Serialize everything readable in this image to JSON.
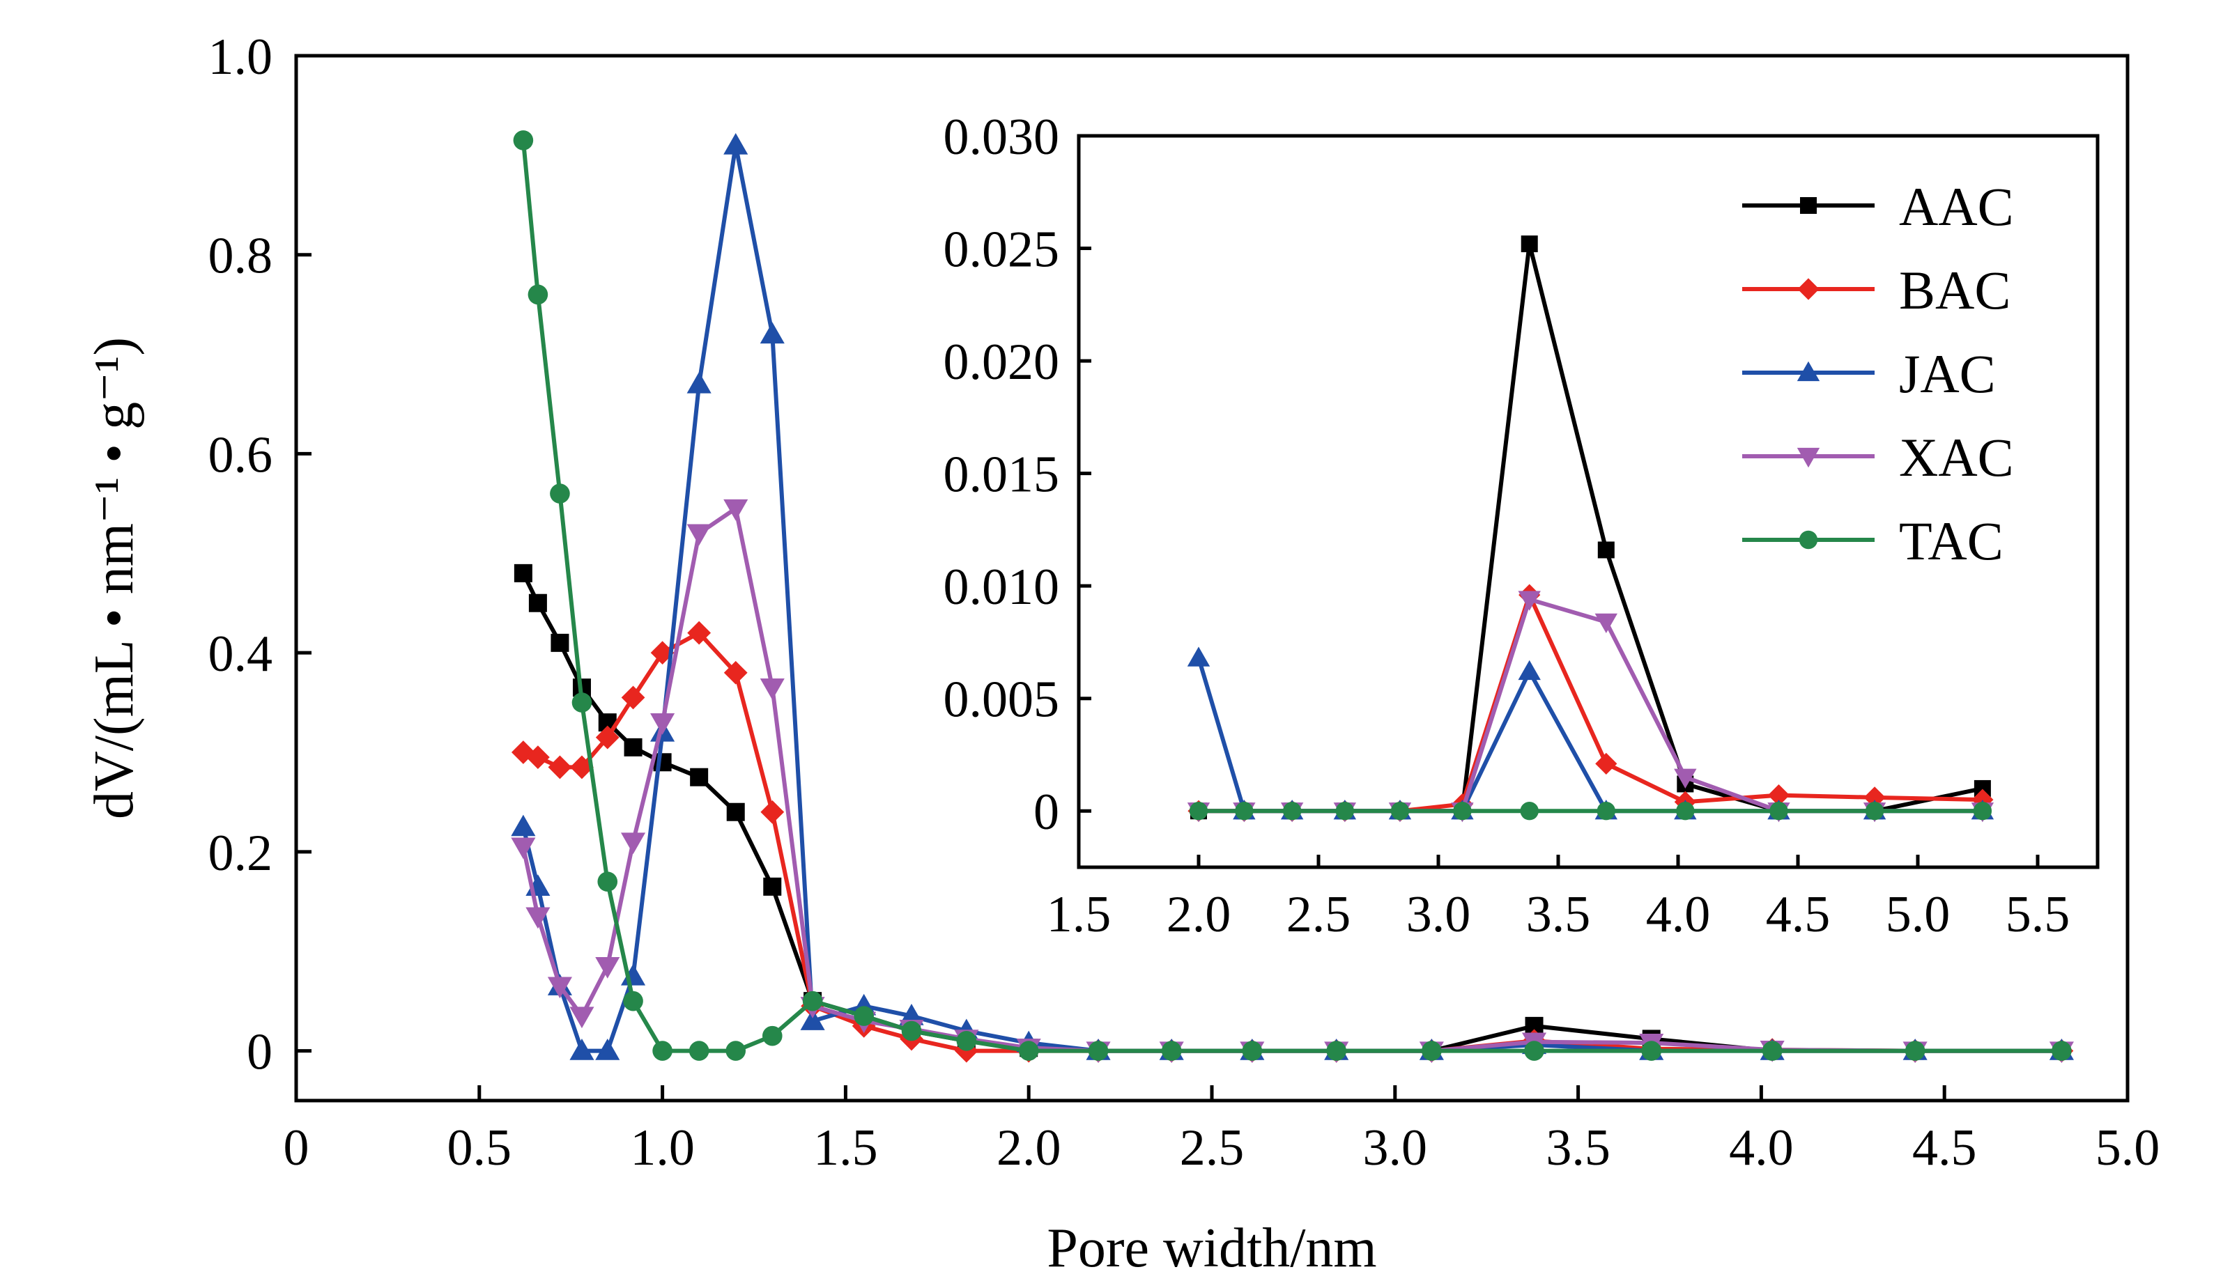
{
  "chart_data": [
    {
      "type": "line",
      "title": "",
      "xlabel": "Pore width/nm",
      "ylabel": "dV/(mL • nm⁻¹ • g⁻¹)",
      "xlim": [
        0,
        5.0
      ],
      "ylim": [
        -0.05,
        1.0
      ],
      "xticks": [
        "0",
        "0.5",
        "1.0",
        "1.5",
        "2.0",
        "2.5",
        "3.0",
        "3.5",
        "4.0",
        "4.5",
        "5.0"
      ],
      "yticks": [
        "0",
        "0.2",
        "0.4",
        "0.6",
        "0.8",
        "1.0"
      ],
      "grid": false,
      "series": [
        {
          "name": "AAC",
          "color": "#000000",
          "marker": "square",
          "x": [
            0.62,
            0.66,
            0.72,
            0.78,
            0.85,
            0.92,
            1.0,
            1.1,
            1.2,
            1.3,
            1.41,
            1.55,
            1.68,
            1.83,
            2.0,
            2.19,
            2.39,
            2.61,
            2.84,
            3.1,
            3.38,
            3.7,
            4.03,
            4.42,
            4.82
          ],
          "y": [
            0.48,
            0.45,
            0.41,
            0.365,
            0.33,
            0.305,
            0.29,
            0.275,
            0.24,
            0.165,
            0.05,
            0.035,
            0.02,
            0.01,
            0.003,
            0,
            0,
            0,
            0,
            0,
            0.025,
            0.012,
            0,
            0,
            0
          ]
        },
        {
          "name": "BAC",
          "color": "#e8261f",
          "marker": "diamond",
          "x": [
            0.62,
            0.66,
            0.72,
            0.78,
            0.85,
            0.92,
            1.0,
            1.1,
            1.2,
            1.3,
            1.41,
            1.55,
            1.68,
            1.83,
            2.0,
            2.19,
            2.39,
            2.61,
            2.84,
            3.1,
            3.38,
            3.7,
            4.03,
            4.42,
            4.82
          ],
          "y": [
            0.3,
            0.295,
            0.285,
            0.285,
            0.315,
            0.355,
            0.4,
            0.42,
            0.38,
            0.24,
            0.045,
            0.025,
            0.012,
            0,
            0,
            0,
            0,
            0,
            0,
            0,
            0.01,
            0.002,
            0.001,
            0,
            0
          ]
        },
        {
          "name": "JAC",
          "color": "#1f4fa8",
          "marker": "triangle-up",
          "x": [
            0.62,
            0.66,
            0.72,
            0.78,
            0.85,
            0.92,
            1.0,
            1.1,
            1.2,
            1.3,
            1.41,
            1.55,
            1.68,
            1.83,
            2.0,
            2.19,
            2.39,
            2.61,
            2.84,
            3.1,
            3.38,
            3.7,
            4.03,
            4.42,
            4.82
          ],
          "y": [
            0.225,
            0.165,
            0.065,
            0,
            0,
            0.075,
            0.32,
            0.67,
            0.91,
            0.72,
            0.03,
            0.045,
            0.035,
            0.02,
            0.008,
            0,
            0,
            0,
            0,
            0,
            0.006,
            0,
            0,
            0,
            0
          ]
        },
        {
          "name": "XAC",
          "color": "#a15cb0",
          "marker": "triangle-down",
          "x": [
            0.62,
            0.66,
            0.72,
            0.78,
            0.85,
            0.92,
            1.0,
            1.1,
            1.2,
            1.3,
            1.41,
            1.55,
            1.68,
            1.83,
            2.0,
            2.19,
            2.39,
            2.61,
            2.84,
            3.1,
            3.38,
            3.7,
            4.03,
            4.42,
            4.82
          ],
          "y": [
            0.205,
            0.135,
            0.065,
            0.035,
            0.085,
            0.21,
            0.33,
            0.52,
            0.545,
            0.365,
            0.045,
            0.03,
            0.022,
            0.012,
            0.003,
            0,
            0,
            0,
            0,
            0,
            0.009,
            0.008,
            0.001,
            0,
            0
          ]
        },
        {
          "name": "TAC",
          "color": "#25874a",
          "marker": "circle",
          "x": [
            0.62,
            0.66,
            0.72,
            0.78,
            0.85,
            0.92,
            1.0,
            1.1,
            1.2,
            1.3,
            1.41,
            1.55,
            1.68,
            1.83,
            2.0,
            2.19,
            2.39,
            2.61,
            2.84,
            3.1,
            3.38,
            3.7,
            4.03,
            4.42,
            4.82
          ],
          "y": [
            0.915,
            0.76,
            0.56,
            0.35,
            0.17,
            0.05,
            0,
            0,
            0,
            0.015,
            0.05,
            0.035,
            0.02,
            0.01,
            0,
            0,
            0,
            0,
            0,
            0,
            0,
            0,
            0,
            0,
            0
          ]
        }
      ]
    },
    {
      "type": "line",
      "title": "",
      "xlabel": "",
      "ylabel": "",
      "xlim": [
        1.5,
        5.75
      ],
      "ylim": [
        -0.0025,
        0.03
      ],
      "xticks": [
        "1.5",
        "2.0",
        "2.5",
        "3.0",
        "3.5",
        "4.0",
        "4.5",
        "5.0",
        "5.5"
      ],
      "yticks": [
        "0",
        "0.005",
        "0.010",
        "0.015",
        "0.020",
        "0.025",
        "0.030"
      ],
      "grid": false,
      "legend": "top-right",
      "series": [
        {
          "name": "AAC",
          "color": "#000000",
          "marker": "square",
          "x": [
            2.0,
            2.19,
            2.39,
            2.61,
            2.84,
            3.1,
            3.38,
            3.7,
            4.03,
            4.42,
            4.82,
            5.27
          ],
          "y": [
            0,
            0,
            0,
            0,
            0,
            0,
            0.0252,
            0.0116,
            0.0012,
            0,
            0,
            0.001
          ]
        },
        {
          "name": "BAC",
          "color": "#e8261f",
          "marker": "diamond",
          "x": [
            2.0,
            2.19,
            2.39,
            2.61,
            2.84,
            3.1,
            3.38,
            3.7,
            4.03,
            4.42,
            4.82,
            5.27
          ],
          "y": [
            0,
            0,
            0,
            0,
            0,
            0.0003,
            0.0096,
            0.0021,
            0.0004,
            0.0007,
            0.0006,
            0.0005
          ]
        },
        {
          "name": "JAC",
          "color": "#1f4fa8",
          "marker": "triangle-up",
          "x": [
            2.0,
            2.19,
            2.39,
            2.61,
            2.84,
            3.1,
            3.38,
            3.7,
            4.03,
            4.42,
            4.82,
            5.27
          ],
          "y": [
            0.0068,
            0,
            0,
            0,
            0,
            0,
            0.0062,
            0,
            0,
            0,
            0,
            0
          ]
        },
        {
          "name": "XAC",
          "color": "#a15cb0",
          "marker": "triangle-down",
          "x": [
            2.0,
            2.19,
            2.39,
            2.61,
            2.84,
            3.1,
            3.38,
            3.7,
            4.03,
            4.42,
            4.82,
            5.27
          ],
          "y": [
            0,
            0,
            0,
            0,
            0,
            0,
            0.0094,
            0.0084,
            0.0015,
            0,
            0,
            0
          ]
        },
        {
          "name": "TAC",
          "color": "#25874a",
          "marker": "circle",
          "x": [
            2.0,
            2.19,
            2.39,
            2.61,
            2.84,
            3.1,
            3.38,
            3.7,
            4.03,
            4.42,
            4.82,
            5.27
          ],
          "y": [
            0,
            0,
            0,
            0,
            0,
            0,
            0,
            0,
            0,
            0,
            0,
            0
          ]
        }
      ]
    }
  ]
}
